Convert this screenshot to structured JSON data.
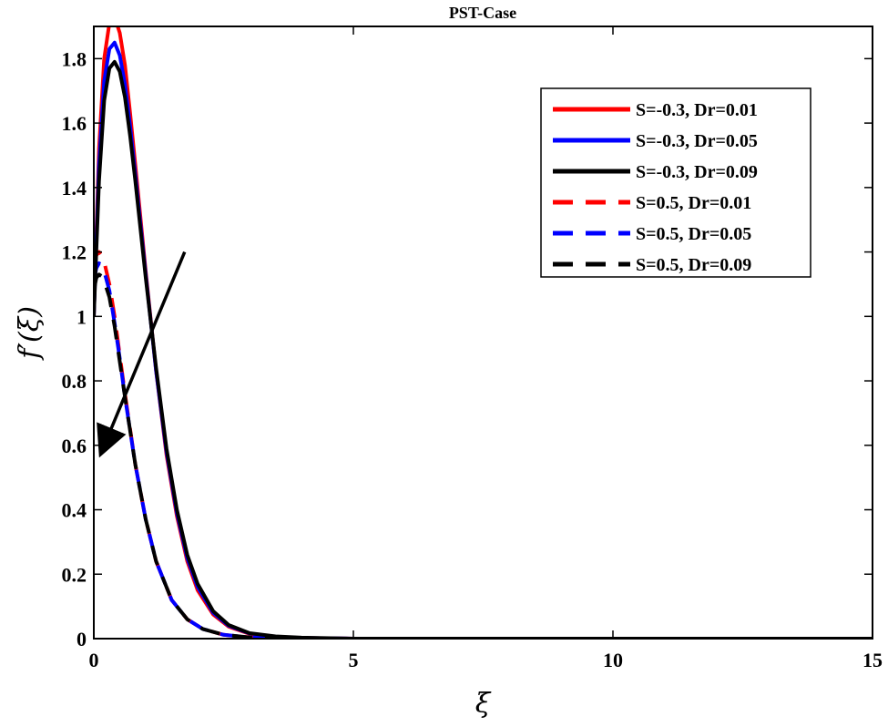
{
  "chart_data": {
    "type": "line",
    "title": "PST-Case",
    "xlabel": "ξ",
    "ylabel": "f′(ξ)",
    "xlim": [
      0,
      15
    ],
    "ylim": [
      0,
      1.9
    ],
    "xticks": [
      0,
      5,
      10,
      15
    ],
    "yticks": [
      0,
      0.2,
      0.4,
      0.6,
      0.8,
      1,
      1.2,
      1.4,
      1.6,
      1.8
    ],
    "grid": false,
    "legend_position": "top-right",
    "arrow_annotation": {
      "from": [
        1.75,
        1.2
      ],
      "to": [
        0.15,
        0.58
      ]
    },
    "series": [
      {
        "name": "S=-0.3, Dr=0.01",
        "color": "#ff0000",
        "style": "solid",
        "x": [
          0,
          0.1,
          0.2,
          0.3,
          0.4,
          0.5,
          0.6,
          0.7,
          0.8,
          1.0,
          1.2,
          1.4,
          1.6,
          1.8,
          2.0,
          2.3,
          2.6,
          3.0,
          3.5,
          4.0,
          5.0,
          7.0,
          10.0,
          15.0
        ],
        "y": [
          1.0,
          1.52,
          1.8,
          1.91,
          1.93,
          1.88,
          1.78,
          1.63,
          1.47,
          1.14,
          0.83,
          0.57,
          0.38,
          0.24,
          0.15,
          0.075,
          0.037,
          0.015,
          0.006,
          0.002,
          0,
          0,
          0,
          0
        ]
      },
      {
        "name": "S=-0.3, Dr=0.05",
        "color": "#0000ff",
        "style": "solid",
        "x": [
          0,
          0.1,
          0.2,
          0.3,
          0.4,
          0.5,
          0.6,
          0.7,
          0.8,
          1.0,
          1.2,
          1.4,
          1.6,
          1.8,
          2.0,
          2.3,
          2.6,
          3.0,
          3.5,
          4.0,
          5.0,
          7.0,
          10.0,
          15.0
        ],
        "y": [
          1.0,
          1.47,
          1.73,
          1.83,
          1.85,
          1.81,
          1.72,
          1.59,
          1.44,
          1.13,
          0.83,
          0.58,
          0.39,
          0.25,
          0.16,
          0.08,
          0.04,
          0.016,
          0.006,
          0.002,
          0,
          0,
          0,
          0
        ]
      },
      {
        "name": "S=-0.3, Dr=0.09",
        "color": "#000000",
        "style": "solid",
        "x": [
          0,
          0.1,
          0.2,
          0.3,
          0.4,
          0.5,
          0.6,
          0.7,
          0.8,
          1.0,
          1.2,
          1.4,
          1.6,
          1.8,
          2.0,
          2.3,
          2.6,
          3.0,
          3.5,
          4.0,
          5.0,
          7.0,
          10.0,
          15.0
        ],
        "y": [
          1.0,
          1.42,
          1.67,
          1.77,
          1.79,
          1.76,
          1.68,
          1.56,
          1.42,
          1.12,
          0.84,
          0.59,
          0.4,
          0.26,
          0.17,
          0.085,
          0.042,
          0.017,
          0.007,
          0.003,
          0,
          0,
          0,
          0
        ]
      },
      {
        "name": "S=0.5, Dr=0.01",
        "color": "#ff0000",
        "style": "dashed",
        "x": [
          0,
          0.05,
          0.1,
          0.15,
          0.2,
          0.3,
          0.4,
          0.5,
          0.6,
          0.8,
          1.0,
          1.2,
          1.5,
          1.8,
          2.1,
          2.5,
          3.0,
          3.5,
          4.0,
          5.0,
          7.0,
          10.0,
          15.0
        ],
        "y": [
          1.15,
          1.19,
          1.2,
          1.19,
          1.17,
          1.1,
          1.0,
          0.88,
          0.76,
          0.54,
          0.37,
          0.24,
          0.12,
          0.06,
          0.03,
          0.012,
          0.004,
          0.001,
          0,
          0,
          0,
          0,
          0
        ]
      },
      {
        "name": "S=0.5, Dr=0.05",
        "color": "#0000ff",
        "style": "dashed",
        "x": [
          0,
          0.05,
          0.1,
          0.15,
          0.2,
          0.3,
          0.4,
          0.5,
          0.6,
          0.8,
          1.0,
          1.2,
          1.5,
          1.8,
          2.1,
          2.5,
          3.0,
          3.5,
          4.0,
          5.0,
          7.0,
          10.0,
          15.0
        ],
        "y": [
          1.11,
          1.15,
          1.165,
          1.16,
          1.14,
          1.08,
          0.98,
          0.87,
          0.75,
          0.54,
          0.37,
          0.24,
          0.12,
          0.06,
          0.03,
          0.012,
          0.004,
          0.001,
          0,
          0,
          0,
          0,
          0
        ]
      },
      {
        "name": "S=0.5, Dr=0.09",
        "color": "#000000",
        "style": "dashed",
        "x": [
          0,
          0.05,
          0.1,
          0.15,
          0.2,
          0.3,
          0.4,
          0.5,
          0.6,
          0.8,
          1.0,
          1.2,
          1.5,
          1.8,
          2.1,
          2.5,
          3.0,
          3.5,
          4.0,
          5.0,
          7.0,
          10.0,
          15.0
        ],
        "y": [
          1.08,
          1.12,
          1.13,
          1.125,
          1.11,
          1.06,
          0.97,
          0.86,
          0.75,
          0.54,
          0.37,
          0.24,
          0.12,
          0.06,
          0.03,
          0.012,
          0.004,
          0.001,
          0,
          0,
          0,
          0,
          0
        ]
      }
    ]
  }
}
